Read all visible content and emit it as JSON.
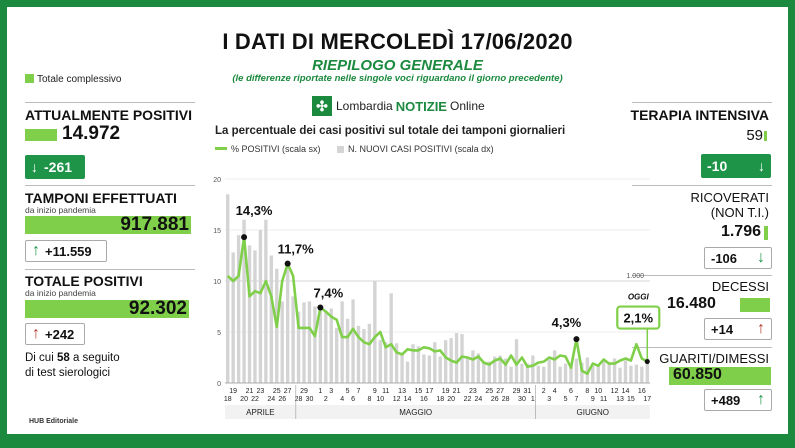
{
  "header": {
    "title": "I DATI DI MERCOLEDÌ 17/06/2020",
    "subtitle": "RIEPILOGO GENERALE",
    "note": "(le differenze riportate nelle singole voci riguardano il giorno precedente)",
    "legend": "Totale complessivo",
    "logo_left": "Lombardia",
    "logo_mid": "NOTIZIE",
    "logo_right": "Online"
  },
  "left": {
    "positivi": {
      "label": "ATTUALMENTE POSITIVI",
      "value": "14.972",
      "delta": "-261"
    },
    "tamponi": {
      "label": "TAMPONI EFFETTUATI",
      "sub": "da inizio pandemia",
      "value": "917.881",
      "delta": "+11.559"
    },
    "totale": {
      "label": "TOTALE POSITIVI",
      "sub": "da inizio pandemia",
      "value": "92.302",
      "delta": "+242"
    },
    "sierologici": {
      "pre": "Di cui",
      "num": "58",
      "post": "a seguito",
      "line2": "di test sierologici"
    }
  },
  "right": {
    "terapia": {
      "label": "TERAPIA INTENSIVA",
      "value": "59",
      "delta": "-10"
    },
    "ricoverati": {
      "label1": "RICOVERATI",
      "label2": "(NON T.I.)",
      "value": "1.796",
      "delta": "-106"
    },
    "decessi": {
      "label": "DECESSI",
      "value": "16.480",
      "delta": "+14"
    },
    "guariti": {
      "label": "GUARITI/DIMESSI",
      "value": "60.850",
      "delta": "+489"
    }
  },
  "footer": {
    "credit": "HUB Editoriale"
  },
  "colors": {
    "green_dark": "#1e9448",
    "green_light": "#7fcf4a",
    "red": "#b23a2a",
    "bar_grey": "#d4d4d4"
  },
  "chart_data": {
    "type": "line",
    "title": "La percentuale dei casi positivi sul totale dei tamponi giornalieri",
    "legend": [
      "% POSITIVI (scala sx)",
      "N. NUOVI CASI POSITIVI (scala dx)"
    ],
    "y_left_ticks": [
      "0",
      "5",
      "10",
      "15",
      "20"
    ],
    "y_left_lim": [
      0,
      20
    ],
    "y_right_label": "1.000",
    "y_right_lim": [
      0,
      2000
    ],
    "x_top": [
      "19",
      "21",
      "23",
      "25",
      "27",
      "29",
      "1",
      "3",
      "5",
      "7",
      "9",
      "11",
      "13",
      "15",
      "17",
      "19",
      "21",
      "23",
      "25",
      "27",
      "29",
      "31",
      "2",
      "4",
      "6",
      "8",
      "10",
      "12",
      "14",
      "16"
    ],
    "x_bottom": [
      "18",
      "20",
      "22",
      "24",
      "26",
      "28",
      "30",
      "2",
      "4",
      "6",
      "8",
      "10",
      "12",
      "14",
      "16",
      "18",
      "20",
      "22",
      "24",
      "26",
      "28",
      "30",
      "1",
      "3",
      "5",
      "7",
      "9",
      "11",
      "13",
      "15",
      "17"
    ],
    "months": [
      "APRILE",
      "MAGGIO",
      "GIUGNO"
    ],
    "series": [
      {
        "name": "% POSITIVI (scala sx)",
        "values": [
          10.5,
          10,
          10.5,
          14.3,
          8.5,
          9,
          8.8,
          10,
          8.5,
          5.5,
          10,
          11.7,
          10.5,
          5.4,
          5.4,
          5.4,
          4.6,
          7.4,
          7,
          6.5,
          6.2,
          4.5,
          4.5,
          5.3,
          4.5,
          4,
          3.8,
          4.5,
          5,
          3.5,
          3.8,
          3,
          2.8,
          3.3,
          3.2,
          3.2,
          3.5,
          3.4,
          3.1,
          3.2,
          2.5,
          2.2,
          2,
          2.6,
          2.5,
          2.3,
          2.6,
          2,
          1.8,
          2.2,
          2.4,
          1.8,
          2.7,
          1.8,
          2.5,
          1.6,
          1.7,
          2,
          2.1,
          2.5,
          2.3,
          2.7,
          2.6,
          1.5,
          4.3,
          1.2,
          0.9,
          1.9,
          1.7,
          2.3,
          1.9,
          1.9,
          2.2,
          2.4,
          2.2,
          3.8,
          2.4,
          2.1
        ]
      },
      {
        "name": "N. NUOVI CASI POSITIVI (scala dx)",
        "values": [
          1850,
          1280,
          1450,
          1600,
          1350,
          1300,
          1500,
          1600,
          1250,
          1120,
          800,
          1200,
          850,
          700,
          790,
          800,
          750,
          760,
          700,
          730,
          540,
          800,
          630,
          820,
          560,
          530,
          580,
          1000,
          420,
          400,
          880,
          390,
          280,
          210,
          380,
          360,
          280,
          270,
          400,
          260,
          420,
          440,
          490,
          480,
          240,
          320,
          290,
          210,
          210,
          260,
          270,
          240,
          160,
          430,
          190,
          190,
          270,
          170,
          160,
          230,
          320,
          160,
          190,
          180,
          240,
          200,
          250,
          170,
          170,
          230,
          190,
          240,
          150,
          220,
          170,
          180,
          160,
          240
        ]
      }
    ],
    "annotations": [
      {
        "label": "14,3%",
        "index": 3
      },
      {
        "label": "11,7%",
        "index": 11
      },
      {
        "label": "7,4%",
        "index": 17
      },
      {
        "label": "4,3%",
        "index": 64
      },
      {
        "label": "OGGI",
        "index": 77
      },
      {
        "label": "2,1%",
        "index": 77
      }
    ]
  }
}
